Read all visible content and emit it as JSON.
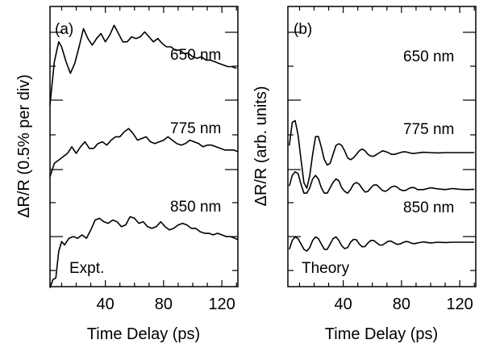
{
  "chart_data": [
    {
      "type": "line",
      "panel_label": "(a)",
      "xlabel": "Time Delay (ps)",
      "ylabel": "ΔR/R (0.5% per div)",
      "xlim": [
        2,
        131
      ],
      "xticks": [
        40,
        80,
        120
      ],
      "ylim_divisions": 5,
      "annotation": "Expt.",
      "grid": false,
      "series": [
        {
          "name": "650 nm",
          "x": [
            2,
            5,
            8,
            10,
            13,
            16,
            19,
            22,
            25,
            28,
            31,
            34,
            37,
            40,
            43,
            46,
            49,
            52,
            55,
            58,
            61,
            64,
            67,
            70,
            73,
            76,
            79,
            82,
            85,
            88,
            91,
            94,
            97,
            100,
            103,
            106,
            109,
            112,
            115,
            118,
            121,
            124,
            127,
            130
          ],
          "y": [
            0.3,
            1.6,
            2.2,
            2.05,
            1.6,
            1.25,
            1.55,
            2.05,
            2.6,
            2.3,
            2.1,
            2.3,
            2.45,
            2.2,
            2.4,
            2.7,
            2.45,
            2.2,
            2.2,
            2.35,
            2.3,
            2.35,
            2.5,
            2.35,
            2.2,
            2.3,
            2.15,
            2.05,
            2.05,
            1.95,
            1.95,
            1.85,
            1.85,
            1.75,
            1.7,
            1.75,
            1.65,
            1.65,
            1.6,
            1.55,
            1.5,
            1.45,
            1.45,
            1.4
          ]
        },
        {
          "name": "775 nm",
          "x": [
            2,
            5,
            8,
            11,
            14,
            17,
            20,
            23,
            26,
            29,
            32,
            35,
            38,
            41,
            44,
            47,
            50,
            53,
            56,
            59,
            62,
            65,
            68,
            71,
            74,
            77,
            80,
            83,
            86,
            89,
            92,
            95,
            98,
            101,
            104,
            107,
            110,
            113,
            116,
            119,
            122,
            125,
            128,
            131
          ],
          "y": [
            -0.15,
            0.25,
            0.35,
            0.45,
            0.55,
            0.75,
            0.55,
            0.75,
            0.9,
            0.7,
            0.7,
            0.85,
            0.9,
            0.8,
            0.95,
            1.05,
            1.05,
            1.2,
            1.3,
            1.15,
            0.95,
            1.0,
            1.05,
            0.9,
            0.85,
            0.9,
            0.95,
            1.05,
            0.95,
            0.85,
            0.8,
            0.85,
            0.95,
            0.9,
            0.85,
            0.75,
            0.8,
            0.8,
            0.75,
            0.7,
            0.65,
            0.65,
            0.65,
            0.6
          ]
        },
        {
          "name": "850 nm",
          "x": [
            2,
            4,
            6,
            8,
            10,
            12,
            15,
            18,
            21,
            24,
            27,
            30,
            33,
            36,
            39,
            42,
            45,
            48,
            51,
            54,
            57,
            60,
            63,
            66,
            69,
            72,
            75,
            78,
            81,
            84,
            87,
            90,
            93,
            96,
            99,
            102,
            105,
            108,
            111,
            114,
            117,
            120,
            123,
            126,
            129,
            131
          ],
          "y": [
            -1.55,
            -1.3,
            -1.25,
            -0.45,
            -0.15,
            -0.25,
            -0.05,
            0.0,
            -0.05,
            0.05,
            -0.05,
            0.2,
            0.5,
            0.55,
            0.45,
            0.4,
            0.5,
            0.45,
            0.3,
            0.35,
            0.6,
            0.55,
            0.4,
            0.45,
            0.3,
            0.25,
            0.3,
            0.45,
            0.3,
            0.2,
            0.25,
            0.35,
            0.4,
            0.35,
            0.25,
            0.25,
            0.15,
            0.1,
            0.1,
            0.05,
            0.1,
            0.05,
            0.0,
            0.0,
            -0.05,
            -0.1
          ]
        }
      ]
    },
    {
      "type": "line",
      "panel_label": "(b)",
      "xlabel": "Time Delay (ps)",
      "ylabel": "ΔR/R (arb. units)",
      "xlim": [
        2,
        131
      ],
      "xticks": [
        40,
        80,
        120
      ],
      "ylim_divisions": 5,
      "annotation": "Theory",
      "grid": false,
      "series": [
        {
          "name": "650 nm",
          "x": [
            3,
            5,
            7,
            9,
            11,
            13,
            15,
            17,
            19,
            21,
            23,
            25,
            27,
            29,
            31,
            33,
            35,
            37,
            39,
            41,
            43,
            45,
            47,
            49,
            51,
            53,
            55,
            57,
            59,
            61,
            63,
            65,
            67,
            69,
            71,
            73,
            75,
            77,
            79,
            81,
            83,
            85,
            87,
            89,
            91,
            95,
            100,
            105,
            110,
            115,
            120,
            125,
            130
          ],
          "y": [
            2.2,
            2.85,
            2.9,
            2.5,
            1.8,
            1.15,
            1.0,
            1.35,
            1.95,
            2.45,
            2.45,
            2.15,
            1.8,
            1.65,
            1.7,
            1.95,
            2.2,
            2.25,
            2.2,
            2.05,
            1.85,
            1.8,
            1.85,
            1.95,
            2.05,
            2.1,
            2.05,
            1.95,
            1.9,
            1.9,
            1.95,
            2.0,
            2.05,
            2.03,
            2.0,
            1.95,
            1.95,
            1.97,
            2.0,
            2.02,
            2.02,
            2.0,
            1.98,
            1.98,
            1.99,
            2.01,
            2.0,
            1.99,
            2.0,
            2.0,
            2.0,
            2.0,
            2.0
          ]
        },
        {
          "name": "775 nm",
          "x": [
            3,
            5,
            7,
            9,
            11,
            13,
            15,
            17,
            19,
            21,
            23,
            25,
            27,
            29,
            31,
            33,
            35,
            37,
            39,
            41,
            43,
            45,
            47,
            49,
            51,
            53,
            55,
            57,
            59,
            61,
            63,
            65,
            67,
            69,
            71,
            73,
            75,
            77,
            79,
            81,
            83,
            85,
            87,
            89,
            91,
            95,
            100,
            105,
            110,
            115,
            120,
            125,
            130
          ],
          "y": [
            0.15,
            0.45,
            0.55,
            0.5,
            0.2,
            -0.05,
            -0.05,
            0.1,
            0.35,
            0.45,
            0.35,
            0.1,
            -0.05,
            -0.05,
            0.1,
            0.25,
            0.35,
            0.3,
            0.1,
            0.0,
            -0.05,
            0.05,
            0.2,
            0.25,
            0.2,
            0.08,
            -0.02,
            0.0,
            0.1,
            0.18,
            0.18,
            0.1,
            0.02,
            0.0,
            0.05,
            0.12,
            0.15,
            0.12,
            0.05,
            0.02,
            0.03,
            0.08,
            0.11,
            0.1,
            0.05,
            0.05,
            0.1,
            0.07,
            0.05,
            0.08,
            0.06,
            0.05,
            0.06
          ]
        },
        {
          "name": "850 nm",
          "x": [
            3,
            5,
            7,
            9,
            11,
            13,
            15,
            17,
            19,
            21,
            23,
            25,
            27,
            29,
            31,
            33,
            35,
            37,
            39,
            41,
            43,
            45,
            47,
            49,
            51,
            53,
            55,
            57,
            59,
            61,
            63,
            65,
            67,
            69,
            71,
            73,
            75,
            77,
            79,
            81,
            83,
            85,
            87,
            89,
            91,
            95,
            100,
            105,
            110,
            115,
            120,
            125,
            130
          ],
          "y": [
            -1.2,
            -0.95,
            -0.85,
            -0.9,
            -1.05,
            -1.2,
            -1.25,
            -1.15,
            -0.95,
            -0.85,
            -0.9,
            -1.05,
            -1.2,
            -1.2,
            -1.05,
            -0.9,
            -0.85,
            -0.95,
            -1.1,
            -1.18,
            -1.15,
            -1.0,
            -0.92,
            -0.93,
            -1.05,
            -1.13,
            -1.12,
            -1.02,
            -0.95,
            -0.95,
            -1.02,
            -1.08,
            -1.08,
            -1.02,
            -0.97,
            -0.97,
            -1.02,
            -1.06,
            -1.05,
            -1.01,
            -0.98,
            -0.99,
            -1.03,
            -1.04,
            -1.02,
            -0.99,
            -1.02,
            -1.0,
            -1.01,
            -1.0,
            -1.0,
            -1.0,
            -1.0
          ]
        }
      ]
    }
  ]
}
